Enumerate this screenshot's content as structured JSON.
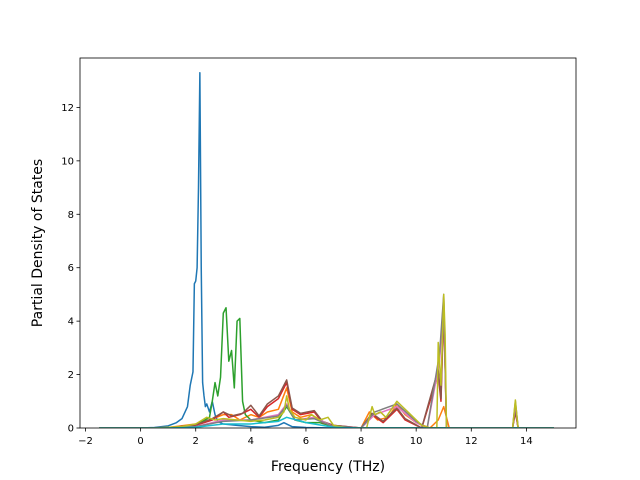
{
  "chart_data": {
    "type": "line",
    "title": "",
    "xlabel": "Frequency (THz)",
    "ylabel": "Partial Density of States",
    "xlim": [
      -2.2,
      15.8
    ],
    "ylim": [
      0,
      13.85
    ],
    "xticks": [
      -2,
      0,
      2,
      4,
      6,
      8,
      10,
      12,
      14
    ],
    "xtick_labels": [
      "−2",
      "0",
      "2",
      "4",
      "6",
      "8",
      "10",
      "12",
      "14"
    ],
    "yticks": [
      0,
      2,
      4,
      6,
      8,
      10,
      12
    ],
    "ytick_labels": [
      "0",
      "2",
      "4",
      "6",
      "8",
      "10",
      "12"
    ],
    "grid": false,
    "legend": "none",
    "series": [
      {
        "color": "#1f77b4",
        "points": [
          [
            -1.5,
            0
          ],
          [
            0,
            0
          ],
          [
            0.5,
            0.02
          ],
          [
            1.0,
            0.08
          ],
          [
            1.3,
            0.2
          ],
          [
            1.5,
            0.35
          ],
          [
            1.7,
            0.8
          ],
          [
            1.8,
            1.6
          ],
          [
            1.9,
            2.1
          ],
          [
            1.95,
            5.4
          ],
          [
            2.0,
            5.5
          ],
          [
            2.05,
            6.0
          ],
          [
            2.1,
            9.0
          ],
          [
            2.15,
            13.3
          ],
          [
            2.2,
            6.0
          ],
          [
            2.25,
            1.7
          ],
          [
            2.3,
            1.2
          ],
          [
            2.35,
            0.8
          ],
          [
            2.4,
            0.9
          ],
          [
            2.5,
            0.6
          ],
          [
            2.6,
            1.0
          ],
          [
            2.7,
            0.5
          ],
          [
            2.8,
            0.25
          ],
          [
            3.0,
            0.15
          ],
          [
            3.5,
            0.1
          ],
          [
            4.0,
            0.05
          ],
          [
            4.5,
            0.03
          ],
          [
            5.0,
            0.1
          ],
          [
            5.2,
            0.2
          ],
          [
            5.5,
            0.05
          ],
          [
            6.0,
            0.02
          ],
          [
            7,
            0
          ],
          [
            15,
            0
          ]
        ]
      },
      {
        "color": "#ff7f0e",
        "points": [
          [
            -1.5,
            0
          ],
          [
            0,
            0
          ],
          [
            1.0,
            0.02
          ],
          [
            2.0,
            0.15
          ],
          [
            2.5,
            0.3
          ],
          [
            3.0,
            0.5
          ],
          [
            3.3,
            0.5
          ],
          [
            3.6,
            0.3
          ],
          [
            4.0,
            0.5
          ],
          [
            4.3,
            0.4
          ],
          [
            4.6,
            0.6
          ],
          [
            5.0,
            0.7
          ],
          [
            5.3,
            1.5
          ],
          [
            5.5,
            0.6
          ],
          [
            5.8,
            0.4
          ],
          [
            6.2,
            0.5
          ],
          [
            6.5,
            0.3
          ],
          [
            7,
            0.05
          ],
          [
            8,
            0
          ],
          [
            8.3,
            0.6
          ],
          [
            8.6,
            0.3
          ],
          [
            9.0,
            0.4
          ],
          [
            9.3,
            0.9
          ],
          [
            9.6,
            0.5
          ],
          [
            10,
            0.2
          ],
          [
            10.5,
            0
          ],
          [
            10.8,
            0.3
          ],
          [
            11.0,
            0.8
          ],
          [
            11.2,
            0
          ],
          [
            13.5,
            0
          ],
          [
            13.6,
            0.8
          ],
          [
            13.7,
            0
          ],
          [
            15,
            0
          ]
        ]
      },
      {
        "color": "#2ca02c",
        "points": [
          [
            -1.5,
            0
          ],
          [
            1.5,
            0
          ],
          [
            2.0,
            0.1
          ],
          [
            2.5,
            0.4
          ],
          [
            2.6,
            1.0
          ],
          [
            2.7,
            1.7
          ],
          [
            2.8,
            1.2
          ],
          [
            2.9,
            1.9
          ],
          [
            3.0,
            4.3
          ],
          [
            3.1,
            4.5
          ],
          [
            3.2,
            2.5
          ],
          [
            3.3,
            2.9
          ],
          [
            3.4,
            1.5
          ],
          [
            3.5,
            4.0
          ],
          [
            3.6,
            4.1
          ],
          [
            3.7,
            1.0
          ],
          [
            3.8,
            0.5
          ],
          [
            4.0,
            0.3
          ],
          [
            4.5,
            0.2
          ],
          [
            5.0,
            0.3
          ],
          [
            5.3,
            0.8
          ],
          [
            5.6,
            0.3
          ],
          [
            6.0,
            0.2
          ],
          [
            6.5,
            0.2
          ],
          [
            7,
            0.05
          ],
          [
            8,
            0
          ],
          [
            15,
            0
          ]
        ]
      },
      {
        "color": "#d62728",
        "points": [
          [
            -1.5,
            0
          ],
          [
            1.0,
            0
          ],
          [
            2.0,
            0.1
          ],
          [
            2.6,
            0.3
          ],
          [
            3.0,
            0.6
          ],
          [
            3.2,
            0.4
          ],
          [
            3.6,
            0.5
          ],
          [
            4.0,
            0.7
          ],
          [
            4.3,
            0.4
          ],
          [
            4.6,
            0.8
          ],
          [
            5.0,
            1.1
          ],
          [
            5.3,
            1.7
          ],
          [
            5.5,
            0.7
          ],
          [
            5.8,
            0.5
          ],
          [
            6.3,
            0.6
          ],
          [
            6.6,
            0.2
          ],
          [
            7.0,
            0.1
          ],
          [
            8,
            0
          ],
          [
            8.4,
            0.5
          ],
          [
            8.8,
            0.2
          ],
          [
            9.3,
            0.7
          ],
          [
            9.6,
            0.3
          ],
          [
            10.2,
            0
          ],
          [
            10.8,
            2.0
          ],
          [
            10.9,
            1.0
          ],
          [
            11.0,
            4.5
          ],
          [
            11.1,
            0
          ],
          [
            13.5,
            0
          ],
          [
            13.6,
            0.6
          ],
          [
            13.7,
            0
          ],
          [
            15,
            0
          ]
        ]
      },
      {
        "color": "#8c564b",
        "points": [
          [
            -1.5,
            0
          ],
          [
            1.0,
            0
          ],
          [
            2.0,
            0.12
          ],
          [
            2.6,
            0.35
          ],
          [
            3.0,
            0.6
          ],
          [
            3.3,
            0.45
          ],
          [
            3.7,
            0.55
          ],
          [
            4.0,
            0.85
          ],
          [
            4.3,
            0.45
          ],
          [
            4.6,
            0.9
          ],
          [
            5.0,
            1.2
          ],
          [
            5.3,
            1.8
          ],
          [
            5.5,
            0.75
          ],
          [
            5.8,
            0.55
          ],
          [
            6.3,
            0.65
          ],
          [
            6.6,
            0.25
          ],
          [
            7.0,
            0.1
          ],
          [
            8,
            0
          ],
          [
            8.4,
            0.55
          ],
          [
            8.8,
            0.25
          ],
          [
            9.3,
            0.75
          ],
          [
            9.6,
            0.35
          ],
          [
            10.2,
            0
          ],
          [
            10.8,
            2.2
          ],
          [
            10.9,
            1.1
          ],
          [
            11.0,
            4.8
          ],
          [
            11.1,
            0
          ],
          [
            13.5,
            0
          ],
          [
            13.6,
            0.65
          ],
          [
            13.7,
            0
          ],
          [
            15,
            0
          ]
        ]
      },
      {
        "color": "#e377c2",
        "points": [
          [
            -1.5,
            0
          ],
          [
            1.0,
            0
          ],
          [
            2.0,
            0.05
          ],
          [
            3.0,
            0.3
          ],
          [
            4.0,
            0.3
          ],
          [
            5.0,
            0.5
          ],
          [
            5.3,
            0.9
          ],
          [
            5.6,
            0.3
          ],
          [
            6.3,
            0.4
          ],
          [
            7.0,
            0.05
          ],
          [
            8,
            0
          ],
          [
            8.5,
            0.5
          ],
          [
            9.3,
            0.8
          ],
          [
            10.0,
            0.2
          ],
          [
            10.4,
            0
          ],
          [
            10.85,
            2.5
          ],
          [
            11.0,
            4.9
          ],
          [
            11.1,
            0
          ],
          [
            13.5,
            0
          ],
          [
            13.6,
            0.9
          ],
          [
            13.7,
            0
          ],
          [
            15,
            0
          ]
        ]
      },
      {
        "color": "#7f7f7f",
        "points": [
          [
            -1.5,
            0
          ],
          [
            1.0,
            0
          ],
          [
            2.0,
            0.05
          ],
          [
            3.0,
            0.25
          ],
          [
            4.0,
            0.3
          ],
          [
            5.0,
            0.45
          ],
          [
            5.3,
            0.85
          ],
          [
            5.6,
            0.3
          ],
          [
            6.3,
            0.35
          ],
          [
            7.0,
            0.05
          ],
          [
            8,
            0
          ],
          [
            8.5,
            0.6
          ],
          [
            9.3,
            0.9
          ],
          [
            10.0,
            0.25
          ],
          [
            10.4,
            0
          ],
          [
            10.85,
            2.8
          ],
          [
            11.0,
            5.0
          ],
          [
            11.1,
            0
          ],
          [
            13.5,
            0
          ],
          [
            13.6,
            1.0
          ],
          [
            13.7,
            0
          ],
          [
            15,
            0
          ]
        ]
      },
      {
        "color": "#bcbd22",
        "points": [
          [
            -1.5,
            0
          ],
          [
            0.5,
            0
          ],
          [
            1.5,
            0.05
          ],
          [
            2.0,
            0.15
          ],
          [
            2.4,
            0.4
          ],
          [
            2.7,
            0.3
          ],
          [
            3.0,
            0.35
          ],
          [
            3.5,
            0.3
          ],
          [
            4.0,
            0.25
          ],
          [
            4.5,
            0.3
          ],
          [
            5.0,
            0.4
          ],
          [
            5.2,
            0.6
          ],
          [
            5.3,
            1.2
          ],
          [
            5.4,
            0.7
          ],
          [
            5.6,
            0.4
          ],
          [
            6.0,
            0.3
          ],
          [
            6.2,
            0.5
          ],
          [
            6.5,
            0.3
          ],
          [
            6.8,
            0.4
          ],
          [
            7.0,
            0.1
          ],
          [
            7.5,
            0
          ],
          [
            8.2,
            0
          ],
          [
            8.4,
            0.8
          ],
          [
            8.5,
            0.5
          ],
          [
            8.7,
            0.6
          ],
          [
            8.9,
            0.4
          ],
          [
            9.1,
            0.7
          ],
          [
            9.3,
            1.0
          ],
          [
            9.5,
            0.8
          ],
          [
            9.7,
            0.6
          ],
          [
            9.9,
            0.4
          ],
          [
            10.2,
            0.1
          ],
          [
            10.5,
            0
          ],
          [
            10.75,
            0
          ],
          [
            10.8,
            3.2
          ],
          [
            10.9,
            1.6
          ],
          [
            11.0,
            5.0
          ],
          [
            11.05,
            3.5
          ],
          [
            11.1,
            0
          ],
          [
            13.5,
            0
          ],
          [
            13.6,
            1.05
          ],
          [
            13.65,
            0.5
          ],
          [
            13.7,
            0
          ],
          [
            15,
            0
          ]
        ]
      },
      {
        "color": "#17becf",
        "points": [
          [
            -1.5,
            0
          ],
          [
            1.0,
            0
          ],
          [
            2.0,
            0.03
          ],
          [
            3.0,
            0.15
          ],
          [
            4.0,
            0.15
          ],
          [
            5.0,
            0.25
          ],
          [
            5.3,
            0.4
          ],
          [
            6.0,
            0.2
          ],
          [
            7.0,
            0.03
          ],
          [
            8,
            0
          ],
          [
            15,
            0
          ]
        ]
      }
    ]
  }
}
